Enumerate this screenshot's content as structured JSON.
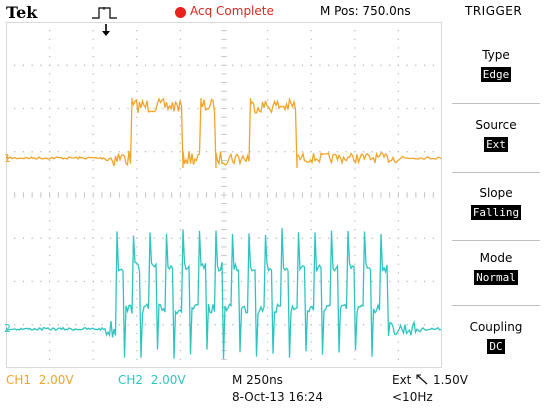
{
  "header": {
    "brand": "Tek",
    "status": "Acq Complete",
    "position": "M Pos: 750.0ns",
    "menu_title": "TRIGGER"
  },
  "colors": {
    "ch1": "#f2a42a",
    "ch2": "#2ec4c0",
    "status": "#e8221c"
  },
  "icons": {
    "trigger_type": "rising-pulse-icon",
    "trigger_position": "down-arrow-icon",
    "slope": "falling-edge-icon"
  },
  "menu": [
    {
      "label": "Type",
      "value": "Edge"
    },
    {
      "label": "Source",
      "value": "Ext"
    },
    {
      "label": "Slope",
      "value": "Falling"
    },
    {
      "label": "Mode",
      "value": "Normal"
    },
    {
      "label": "Coupling",
      "value": "DC"
    }
  ],
  "channels": {
    "ch1_marker": "1",
    "ch2_marker": "2",
    "ch1_name": "CH1",
    "ch1_scale": "2.00V",
    "ch2_name": "CH2",
    "ch2_scale": "2.00V"
  },
  "footer": {
    "timebase": "M 250ns",
    "date": "8-Oct-13 16:24",
    "trigger_source": "Ext",
    "trigger_level": "1.50V",
    "trigger_freq": "<10Hz"
  }
}
